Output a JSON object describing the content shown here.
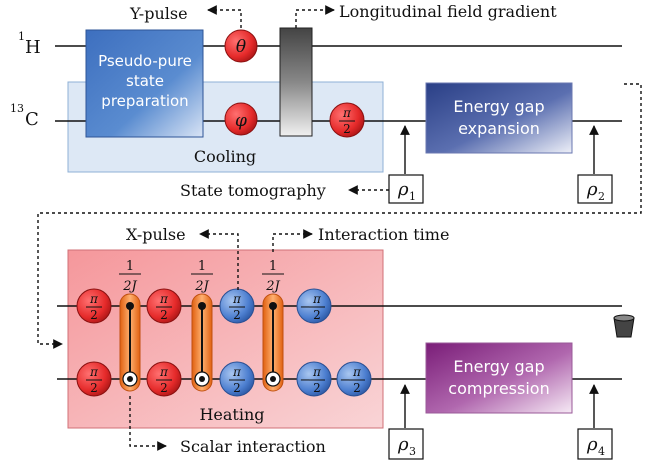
{
  "qubits": {
    "h": {
      "mass": "1",
      "symbol": "H"
    },
    "c": {
      "mass": "13",
      "symbol": "C"
    }
  },
  "top": {
    "pps_box": [
      "Pseudo-pure",
      "state",
      "preparation"
    ],
    "cooling_label": "Cooling",
    "theta": "θ",
    "phi": "φ",
    "pi": "π",
    "two": "2",
    "ypulse_label": "Y-pulse",
    "gradient_label": "Longitudinal field gradient",
    "tomography_label": "State tomography",
    "expansion_box": [
      "Energy gap",
      "expansion"
    ]
  },
  "bottom": {
    "heating_label": "Heating",
    "xpulse_label": "X-pulse",
    "interaction_time_label": "Interaction time",
    "scalar_label": "Scalar interaction",
    "one": "1",
    "twoJ": "2J",
    "pi": "π",
    "two": "2",
    "minus": "−",
    "compression_box": [
      "Energy gap",
      "compression"
    ]
  },
  "rho": {
    "symbol": "ρ",
    "r1": "1",
    "r2": "2",
    "r3": "3",
    "r4": "4"
  },
  "colors": {
    "red_gate": "#e53030",
    "blue_gate": "#4a7fd0",
    "cooling_bg": "#dfe9f6",
    "heating_bg": "#f4a8ab",
    "pps_box": "#4d7fc6",
    "expansion_box": "#3c4f95",
    "compression_box": "#8a2a86",
    "interaction_bar": "#ee7a1f"
  }
}
